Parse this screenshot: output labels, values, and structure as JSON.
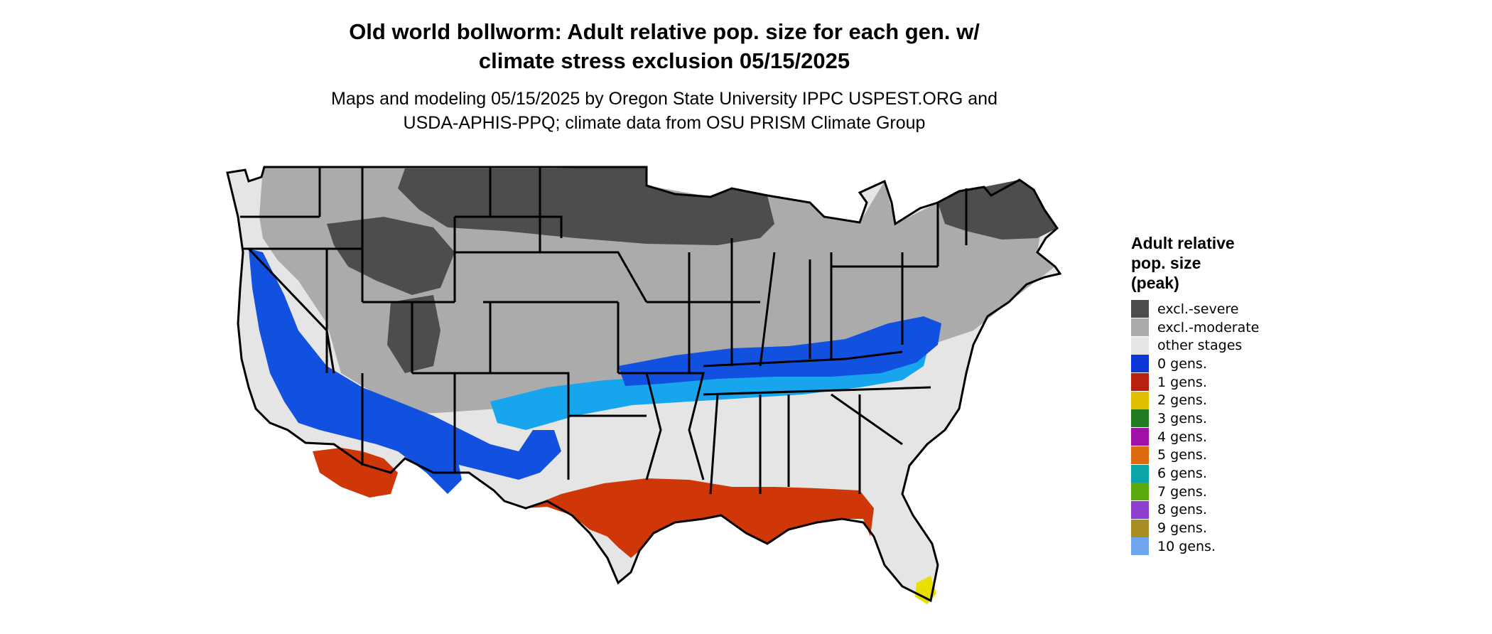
{
  "header": {
    "title_line1": "Old world bollworm: Adult relative pop. size for each gen. w/",
    "title_line2": "climate stress exclusion 05/15/2025",
    "subtitle_line1": "Maps and modeling 05/15/2025 by Oregon State University IPPC USPEST.ORG and",
    "subtitle_line2": "USDA-APHIS-PPQ; climate data from OSU PRISM Climate Group"
  },
  "legend": {
    "title_line1": "Adult relative",
    "title_line2": "pop. size",
    "title_line3": "(peak)",
    "items": [
      {
        "label": "excl.-severe",
        "color": "#4d4d4d"
      },
      {
        "label": "excl.-moderate",
        "color": "#ababab"
      },
      {
        "label": "other stages",
        "color": "#e5e5e5"
      },
      {
        "label": "0 gens.",
        "color": "#0b35d4"
      },
      {
        "label": "1 gens.",
        "color": "#b72210"
      },
      {
        "label": "2 gens.",
        "color": "#e1c000"
      },
      {
        "label": "3 gens.",
        "color": "#217c21"
      },
      {
        "label": "4 gens.",
        "color": "#a010a6"
      },
      {
        "label": "5 gens.",
        "color": "#dd6a10"
      },
      {
        "label": "6 gens.",
        "color": "#0aa4a9"
      },
      {
        "label": "7 gens.",
        "color": "#5ca80f"
      },
      {
        "label": "8 gens.",
        "color": "#8c3fcc"
      },
      {
        "label": "9 gens.",
        "color": "#a88e22"
      },
      {
        "label": "10 gens.",
        "color": "#6fa6ee"
      }
    ]
  },
  "map": {
    "region": "Contiguous United States",
    "colors": {
      "excl_severe": "#4d4d4d",
      "excl_moderate": "#ababab",
      "other_stages": "#e5e5e5",
      "gen0_blue": "#1250e0",
      "gen0_light": "#17a6ee",
      "gen1_red": "#cf3608",
      "gen2_yellow": "#e8e000",
      "border": "#000000"
    }
  }
}
